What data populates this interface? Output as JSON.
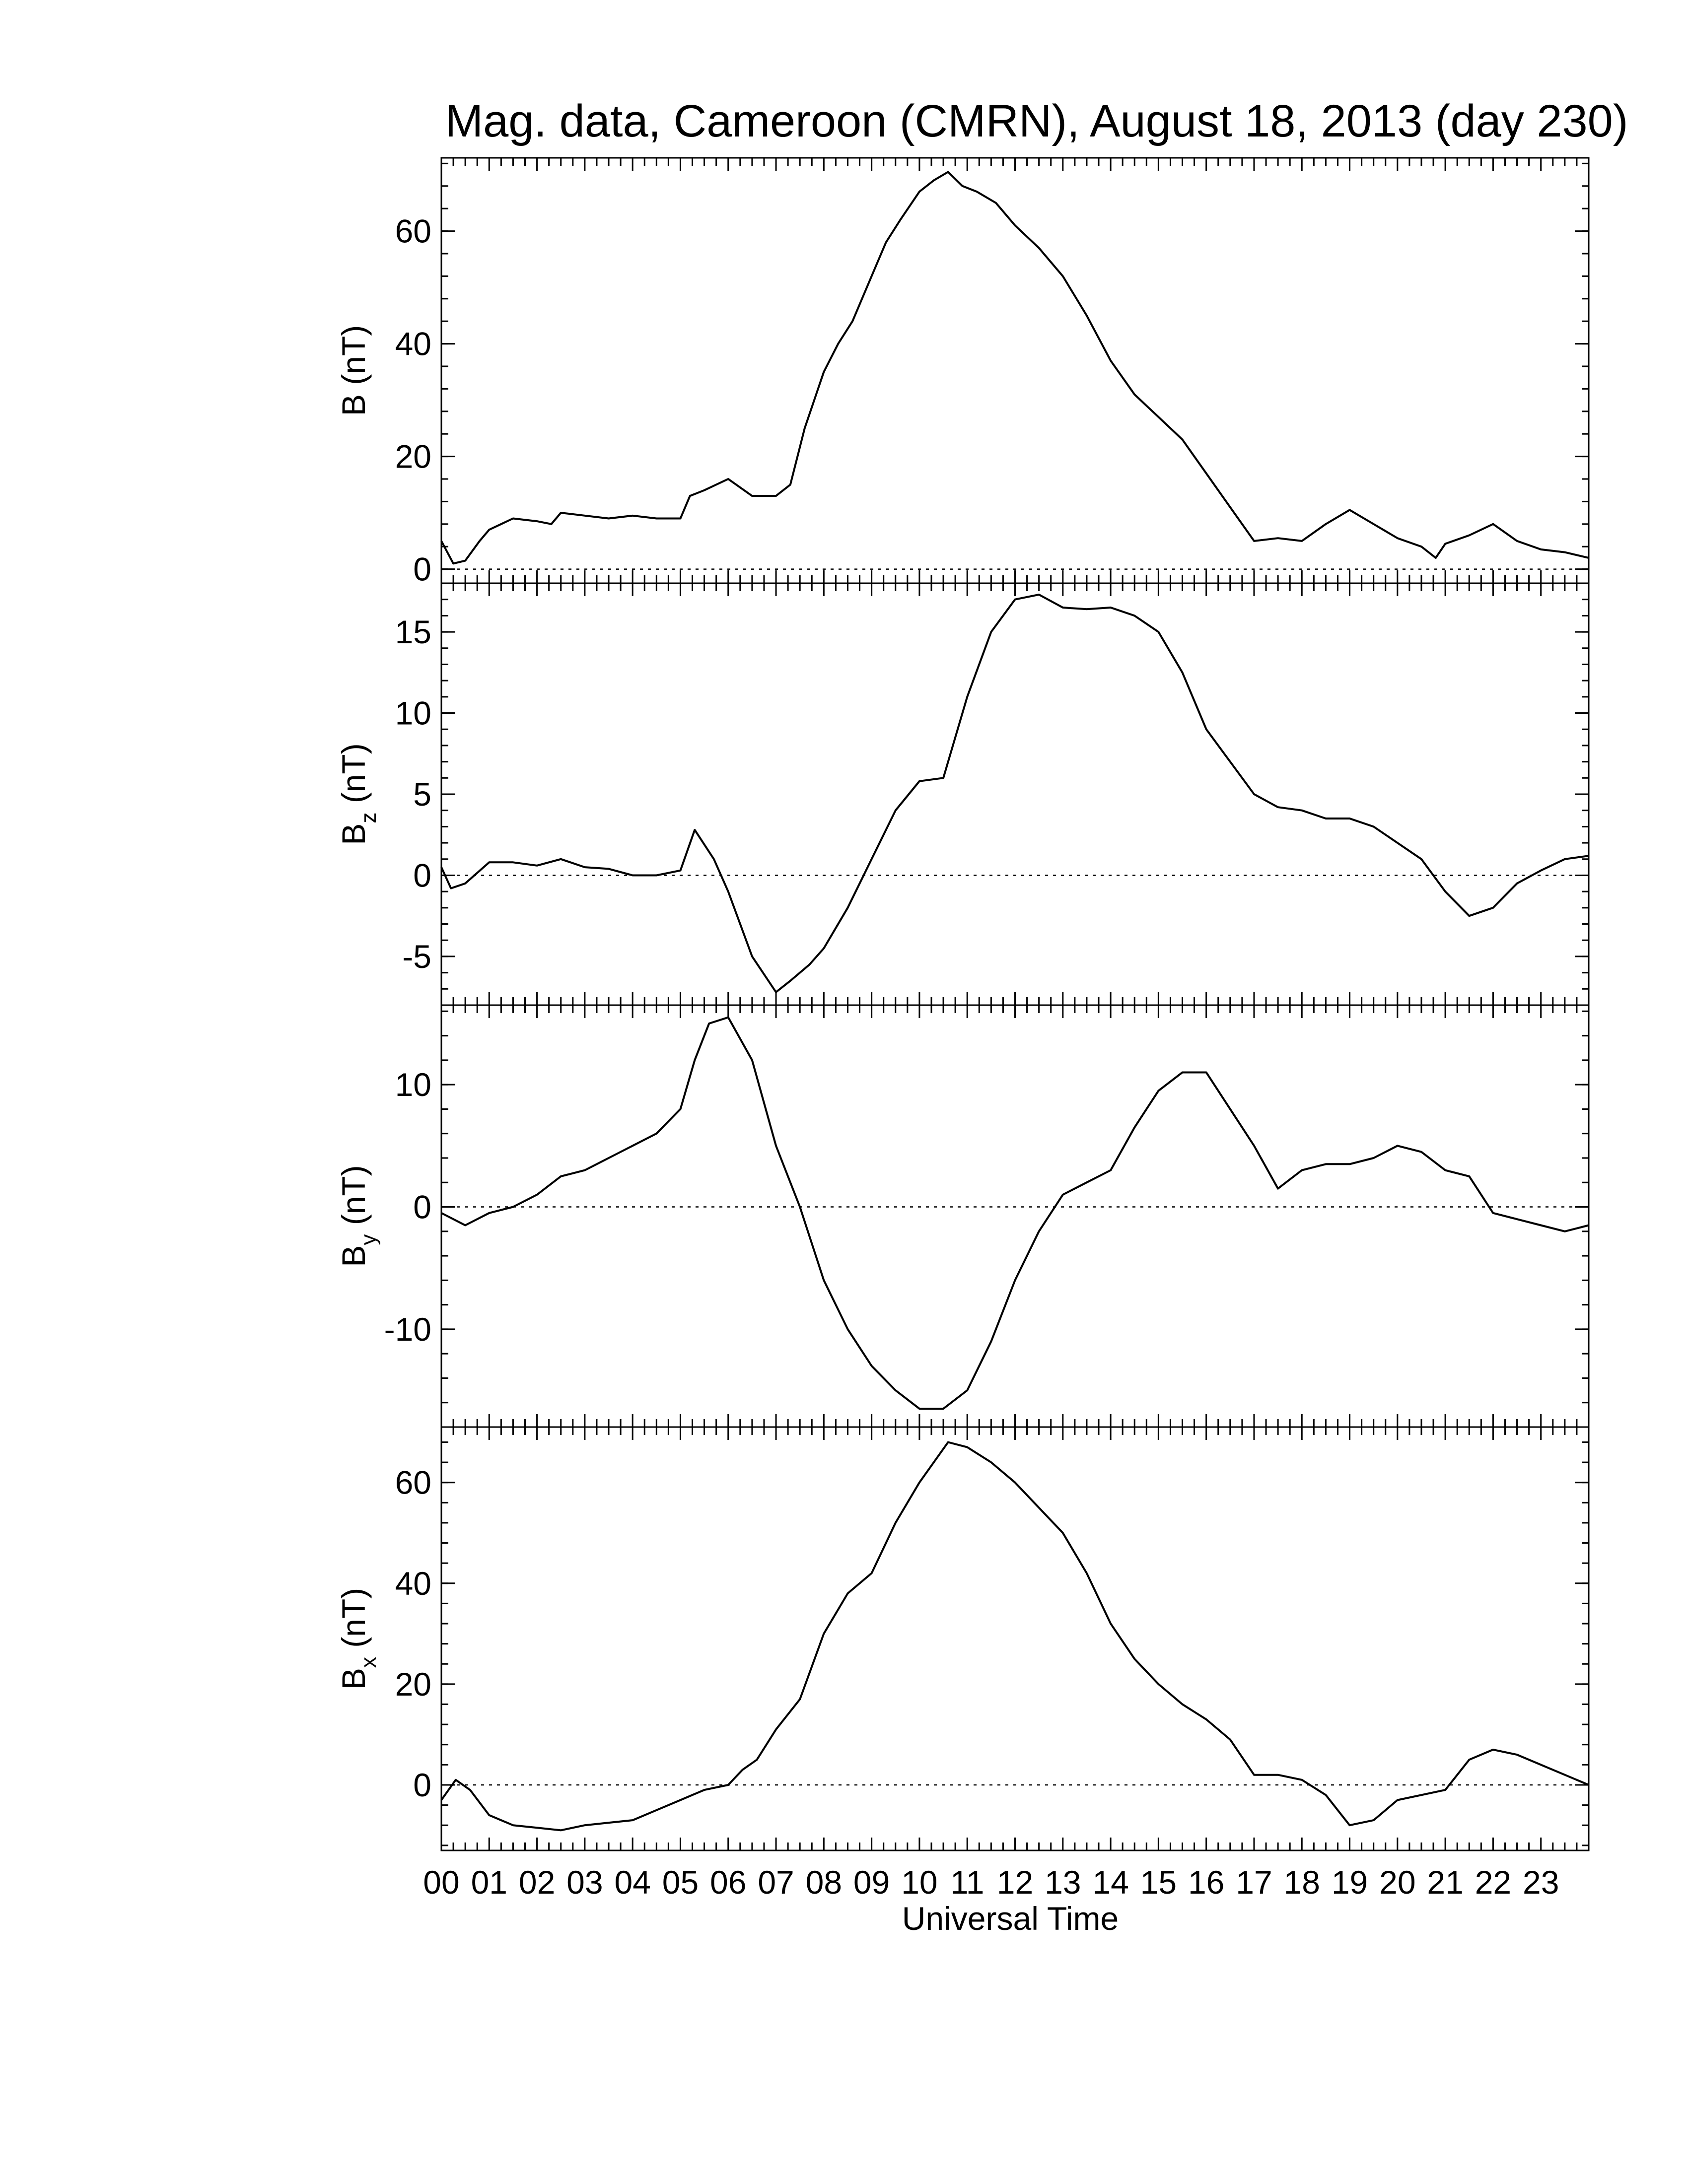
{
  "chart_data": {
    "type": "line",
    "title": "Mag. data, Cameroon (CMRN), August 18, 2013 (day 230)",
    "xlabel": "Universal Time",
    "x_tick_labels": [
      "00",
      "01",
      "02",
      "03",
      "04",
      "05",
      "06",
      "07",
      "08",
      "09",
      "10",
      "11",
      "12",
      "13",
      "14",
      "15",
      "16",
      "17",
      "18",
      "19",
      "20",
      "21",
      "22",
      "23"
    ],
    "xlim": [
      0,
      24
    ],
    "x_unit": "hours UT",
    "panels": [
      {
        "name": "B",
        "ylabel": "B (nT)",
        "ylabel_main": "B",
        "ylabel_sub": "",
        "ylabel_unit": " (nT)",
        "ylim": [
          -2.5,
          73
        ],
        "yticks": [
          0,
          20,
          40,
          60
        ],
        "ytick_labels": [
          "0",
          "20",
          "40",
          "60"
        ],
        "zero_line": true,
        "x": [
          0,
          0.25,
          0.5,
          0.8,
          1.0,
          1.5,
          2.0,
          2.3,
          2.5,
          3.0,
          3.5,
          4.0,
          4.5,
          5.0,
          5.2,
          5.5,
          6.0,
          6.5,
          7.0,
          7.3,
          7.6,
          8.0,
          8.3,
          8.6,
          9.0,
          9.3,
          9.6,
          10.0,
          10.3,
          10.6,
          10.9,
          11.2,
          11.6,
          12.0,
          12.5,
          13.0,
          13.5,
          14.0,
          14.5,
          15.0,
          15.5,
          16.0,
          16.5,
          17.0,
          17.5,
          18.0,
          18.5,
          19.0,
          19.5,
          20.0,
          20.5,
          20.8,
          21.0,
          21.5,
          22.0,
          22.5,
          23.0,
          23.5,
          24.0
        ],
        "values": [
          5,
          1,
          1.5,
          5,
          7,
          9,
          8.5,
          8,
          10,
          9.5,
          9,
          9.5,
          9,
          9,
          13,
          14,
          16,
          13,
          13,
          15,
          25,
          35,
          40,
          44,
          52,
          58,
          62,
          67,
          69,
          70.5,
          68,
          67,
          65,
          61,
          57,
          52,
          45,
          37,
          31,
          27,
          23,
          17,
          11,
          5,
          5.5,
          5,
          8,
          10.5,
          8,
          5.5,
          4,
          2,
          4.5,
          6,
          8,
          5,
          3.5,
          3,
          2
        ]
      },
      {
        "name": "Bz",
        "ylabel": "Bz (nT)",
        "ylabel_main": "B",
        "ylabel_sub": "z",
        "ylabel_unit": " (nT)",
        "ylim": [
          -8,
          18
        ],
        "yticks": [
          -5,
          0,
          5,
          10,
          15
        ],
        "ytick_labels": [
          "-5",
          "0",
          "5",
          "10",
          "15"
        ],
        "zero_line": true,
        "x": [
          0,
          0.2,
          0.5,
          1.0,
          1.5,
          2.0,
          2.5,
          3.0,
          3.5,
          4.0,
          4.5,
          5.0,
          5.3,
          5.7,
          6.0,
          6.5,
          7.0,
          7.3,
          7.7,
          8.0,
          8.5,
          9.0,
          9.5,
          10.0,
          10.5,
          11.0,
          11.5,
          12.0,
          12.5,
          13.0,
          13.5,
          14.0,
          14.5,
          15.0,
          15.5,
          16.0,
          16.5,
          17.0,
          17.5,
          18.0,
          18.5,
          19.0,
          19.5,
          20.0,
          20.5,
          21.0,
          21.5,
          22.0,
          22.5,
          23.0,
          23.5,
          24.0
        ],
        "values": [
          0.5,
          -0.8,
          -0.5,
          0.8,
          0.8,
          0.6,
          1.0,
          0.5,
          0.4,
          0.0,
          0.0,
          0.3,
          2.8,
          1.0,
          -1.0,
          -5.0,
          -7.2,
          -6.5,
          -5.5,
          -4.5,
          -2.0,
          1.0,
          4.0,
          5.8,
          6.0,
          11.0,
          15.0,
          17.0,
          17.3,
          16.5,
          16.4,
          16.5,
          16.0,
          15.0,
          12.5,
          9.0,
          7.0,
          5.0,
          4.2,
          4.0,
          3.5,
          3.5,
          3.0,
          2.0,
          1.0,
          -1.0,
          -2.5,
          -2.0,
          -0.5,
          0.3,
          1.0,
          1.2
        ]
      },
      {
        "name": "By",
        "ylabel": "By (nT)",
        "ylabel_main": "B",
        "ylabel_sub": "y",
        "ylabel_unit": " (nT)",
        "ylim": [
          -18,
          16.5
        ],
        "yticks": [
          -10,
          0,
          10
        ],
        "ytick_labels": [
          "-10",
          "0",
          "10"
        ],
        "zero_line": true,
        "x": [
          0,
          0.5,
          1.0,
          1.5,
          2.0,
          2.5,
          3.0,
          3.5,
          4.0,
          4.5,
          5.0,
          5.3,
          5.6,
          6.0,
          6.5,
          7.0,
          7.5,
          8.0,
          8.5,
          9.0,
          9.5,
          10.0,
          10.5,
          11.0,
          11.5,
          12.0,
          12.5,
          13.0,
          13.5,
          14.0,
          14.5,
          15.0,
          15.5,
          16.0,
          16.5,
          17.0,
          17.5,
          18.0,
          18.5,
          19.0,
          19.5,
          20.0,
          20.5,
          21.0,
          21.5,
          22.0,
          22.5,
          23.0,
          23.5,
          24.0
        ],
        "values": [
          -0.5,
          -1.5,
          -0.5,
          0.0,
          1.0,
          2.5,
          3.0,
          4.0,
          5.0,
          6.0,
          8.0,
          12.0,
          15.0,
          15.5,
          12.0,
          5.0,
          0.0,
          -6.0,
          -10.0,
          -13.0,
          -15.0,
          -16.5,
          -16.5,
          -15.0,
          -11.0,
          -6.0,
          -2.0,
          1.0,
          2.0,
          3.0,
          6.5,
          9.5,
          11.0,
          11.0,
          8.0,
          5.0,
          1.5,
          3.0,
          3.5,
          3.5,
          4.0,
          5.0,
          4.5,
          3.0,
          2.5,
          -0.5,
          -1.0,
          -1.5,
          -2.0,
          -1.5
        ]
      },
      {
        "name": "Bx",
        "ylabel": "Bx (nT)",
        "ylabel_main": "B",
        "ylabel_sub": "x",
        "ylabel_unit": " (nT)",
        "ylim": [
          -13,
          71
        ],
        "yticks": [
          0,
          20,
          40,
          60
        ],
        "ytick_labels": [
          "0",
          "20",
          "40",
          "60"
        ],
        "zero_line": true,
        "x": [
          0,
          0.3,
          0.6,
          1.0,
          1.5,
          2.0,
          2.5,
          3.0,
          3.5,
          4.0,
          4.5,
          5.0,
          5.5,
          6.0,
          6.3,
          6.6,
          7.0,
          7.5,
          8.0,
          8.5,
          9.0,
          9.5,
          10.0,
          10.3,
          10.6,
          11.0,
          11.5,
          12.0,
          12.5,
          13.0,
          13.5,
          14.0,
          14.5,
          15.0,
          15.5,
          16.0,
          16.5,
          17.0,
          17.5,
          18.0,
          18.5,
          19.0,
          19.5,
          20.0,
          20.5,
          21.0,
          21.5,
          22.0,
          22.5,
          23.0,
          23.5,
          24.0
        ],
        "values": [
          -3.0,
          1.0,
          -1.0,
          -6.0,
          -8.0,
          -8.5,
          -9.0,
          -8.0,
          -7.5,
          -7.0,
          -5.0,
          -3.0,
          -1.0,
          0.0,
          3.0,
          5.0,
          11.0,
          17.0,
          30.0,
          38.0,
          42.0,
          52.0,
          60.0,
          64.0,
          68.0,
          67.0,
          64.0,
          60.0,
          55.0,
          50.0,
          42.0,
          32.0,
          25.0,
          20.0,
          16.0,
          13.0,
          9.0,
          2.0,
          2.0,
          1.0,
          -2.0,
          -8.0,
          -7.0,
          -3.0,
          -2.0,
          -1.0,
          5.0,
          7.0,
          6.0,
          4.0,
          2.0,
          0.0
        ]
      }
    ]
  }
}
